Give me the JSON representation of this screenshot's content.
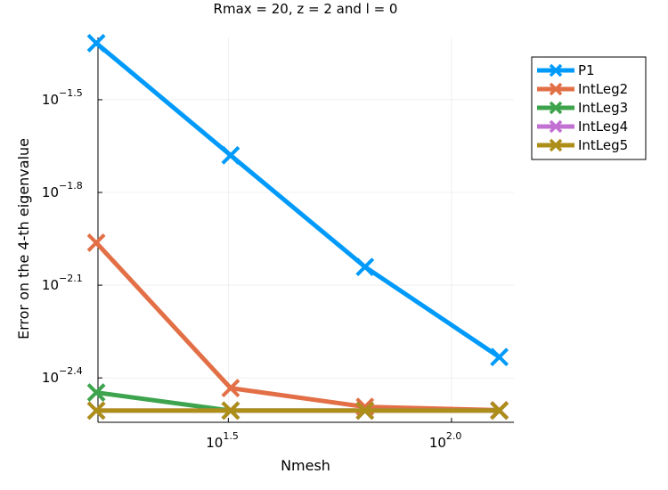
{
  "chart_data": {
    "type": "line",
    "title": "Rmax = 20, z = 2 and l = 0",
    "xlabel": "Nmesh",
    "ylabel": "Error on the 4-th eigenvalue",
    "x_scale": "log10",
    "y_scale": "log10",
    "xlim": [
      16.14,
      138.0
    ],
    "ylim": [
      0.00286,
      0.0503
    ],
    "x_ticks": [
      {
        "base": "10",
        "exp": "1.5",
        "value": 31.6228
      },
      {
        "base": "10",
        "exp": "2.0",
        "value": 100
      }
    ],
    "y_ticks": [
      {
        "base": "10",
        "exp": "−1.5",
        "value": 0.031623
      },
      {
        "base": "10",
        "exp": "−1.8",
        "value": 0.015849
      },
      {
        "base": "10",
        "exp": "−2.1",
        "value": 0.0079433
      },
      {
        "base": "10",
        "exp": "−2.4",
        "value": 0.0039811
      }
    ],
    "x": [
      16,
      32,
      64,
      128
    ],
    "series": [
      {
        "name": "P1",
        "color": "#009AFA",
        "values": [
          0.0482,
          0.0209,
          0.0091,
          0.00465
        ]
      },
      {
        "name": "IntLeg2",
        "color": "#E26F46",
        "values": [
          0.0109,
          0.00369,
          0.00321,
          0.00313
        ]
      },
      {
        "name": "IntLeg3",
        "color": "#3DA44D",
        "values": [
          0.00357,
          0.00312,
          0.00312,
          0.00312
        ]
      },
      {
        "name": "IntLeg4",
        "color": "#C271D2",
        "values": [
          0.00312,
          0.00312,
          0.00312,
          0.00312
        ]
      },
      {
        "name": "IntLeg5",
        "color": "#AC8E18",
        "values": [
          0.00312,
          0.00312,
          0.00312,
          0.00312
        ]
      }
    ],
    "marker": "x-cross",
    "grid": true,
    "legend_position": "outer-top-right"
  }
}
